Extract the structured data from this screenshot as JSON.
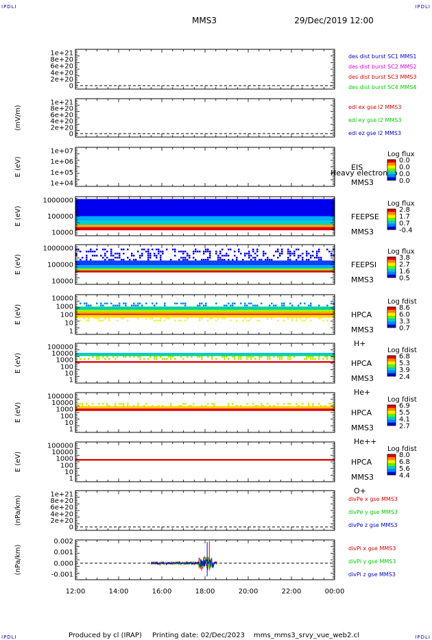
{
  "header": {
    "corner_tl": "IPDLI",
    "corner_tr": "IPDLI",
    "corner_bl": "IPDLI",
    "corner_br": "IPDLI",
    "spacecraft": "MMS3",
    "datetime": "29/Dec/2019 12:00"
  },
  "footer": {
    "produced": "Produced by cl (IRAP)",
    "printing": "Printing date: 02/Dec/2023",
    "file": "mms_mms3_srvy_vue_web2.cl"
  },
  "colors": {
    "red": "#dd0000",
    "green": "#00cc00",
    "blue": "#0000cc",
    "magenta": "#dd00dd"
  },
  "chart_data": [
    {
      "type": "line",
      "panel": "des_dist",
      "ylabel": "",
      "y_ticks": [
        "1e+21",
        "8e+20",
        "6e+20",
        "4e+20",
        "2e+20",
        "0"
      ],
      "series": [
        {
          "name": "des dist burst SC1 MMS1",
          "color": "#0000cc",
          "values": []
        },
        {
          "name": "des dist burst SC2 MMS2",
          "color": "#dd00dd",
          "values": []
        },
        {
          "name": "des dist burst SC3 MMS3",
          "color": "#dd0000",
          "values": []
        },
        {
          "name": "des dist burst SC4 MMS4",
          "color": "#00cc00",
          "values": []
        }
      ],
      "zero_line": true
    },
    {
      "type": "line",
      "panel": "edi",
      "ylabel": "(mV/m)",
      "y_ticks": [
        "1e+21",
        "8e+20",
        "6e+20",
        "4e+20",
        "2e+20",
        "0"
      ],
      "series": [
        {
          "name": "edi ex gse l2 MMS3",
          "color": "#dd0000",
          "values": []
        },
        {
          "name": "edi ey gse l2 MMS3",
          "color": "#00cc00",
          "values": []
        },
        {
          "name": "edi ez gse l2 MMS3",
          "color": "#0000cc",
          "values": []
        }
      ],
      "zero_line": true
    },
    {
      "type": "heatmap",
      "panel": "eis",
      "ylabel": "E (eV)",
      "y_ticks": [
        "1e+07",
        "1e+06",
        "1e+05",
        "1e+04"
      ],
      "instrument": [
        "EIS",
        "MMS3"
      ],
      "annotation": "Heavy electron to",
      "colorbar": {
        "title": "Log flux",
        "ticks": [
          "0.0",
          "0.0",
          "0.0",
          "0.0"
        ]
      },
      "bands": []
    },
    {
      "type": "heatmap",
      "panel": "feeps_e",
      "ylabel": "E (eV)",
      "y_ticks": [
        "1000000",
        "100000",
        "10000"
      ],
      "instrument": [
        "FEEPSE",
        "MMS3"
      ],
      "colorbar": {
        "title": "Log flux",
        "ticks": [
          "2.8",
          "1.7",
          "0.7",
          "-0.4"
        ]
      },
      "bands": [
        {
          "from": 0.06,
          "to": 0.5,
          "color": "#0000ee",
          "t0": 0.0,
          "t1": 1.0
        },
        {
          "from": 0.5,
          "to": 0.62,
          "color": "#00aaff",
          "t0": 0.0,
          "t1": 1.0
        },
        {
          "from": 0.62,
          "to": 0.72,
          "color": "#00d0c8",
          "t0": 0.0,
          "t1": 1.0
        },
        {
          "from": 0.72,
          "to": 0.78,
          "color": "#ffa800",
          "t0": 0.0,
          "t1": 1.0
        },
        {
          "from": 0.78,
          "to": 0.86,
          "color": "#dd0000",
          "t0": 0.0,
          "t1": 1.0
        }
      ]
    },
    {
      "type": "heatmap",
      "panel": "feeps_i",
      "ylabel": "E (eV)",
      "y_ticks": [
        "1000000",
        "100000",
        "10000"
      ],
      "instrument": [
        "FEEPSI",
        "MMS3"
      ],
      "colorbar": {
        "title": "Log flux",
        "ticks": [
          "3.8",
          "2.7",
          "1.6",
          "0.5"
        ]
      },
      "bands": [
        {
          "from": 0.1,
          "to": 0.38,
          "color": "#0000ee",
          "t0": 0.0,
          "t1": 1.0,
          "sparse": true
        },
        {
          "from": 0.4,
          "to": 0.52,
          "color": "#1040ff",
          "t0": 0.0,
          "t1": 1.0
        },
        {
          "from": 0.52,
          "to": 0.6,
          "color": "#00aaff",
          "t0": 0.0,
          "t1": 1.0
        },
        {
          "from": 0.6,
          "to": 0.65,
          "color": "#88ee00",
          "t0": 0.0,
          "t1": 1.0
        },
        {
          "from": 0.65,
          "to": 0.7,
          "color": "#dd0000",
          "t0": 0.0,
          "t1": 1.0
        }
      ]
    },
    {
      "type": "heatmap",
      "panel": "hpca_h",
      "ylabel": "E (eV)",
      "y_ticks": [
        "10000",
        "1000",
        "100",
        "10",
        "1"
      ],
      "instrument": [
        "HPCA",
        "MMS3",
        "H+"
      ],
      "colorbar": {
        "title": "Log fdist",
        "ticks": [
          "8.6",
          "6.0",
          "3.3",
          "0.7"
        ]
      },
      "bands": [
        {
          "from": 0.2,
          "to": 0.3,
          "color": "#0080ff",
          "t0": 0.0,
          "t1": 1.0,
          "sparse": true
        },
        {
          "from": 0.3,
          "to": 0.38,
          "color": "#00d0a0",
          "t0": 0.0,
          "t1": 1.0
        },
        {
          "from": 0.38,
          "to": 0.44,
          "color": "#aaee00",
          "t0": 0.0,
          "t1": 1.0
        },
        {
          "from": 0.44,
          "to": 0.48,
          "color": "#ffa000",
          "t0": 0.0,
          "t1": 1.0
        },
        {
          "from": 0.48,
          "to": 0.51,
          "color": "#dd0000",
          "t0": 0.0,
          "t1": 1.0
        },
        {
          "from": 0.51,
          "to": 0.58,
          "color": "#ffdd00",
          "t0": 0.0,
          "t1": 1.0
        },
        {
          "from": 0.58,
          "to": 0.66,
          "color": "#eeee60",
          "t0": 0.0,
          "t1": 1.0,
          "sparse": true
        }
      ]
    },
    {
      "type": "heatmap",
      "panel": "hpca_he",
      "ylabel": "E (eV)",
      "y_ticks": [
        "100000",
        "10000",
        "1000",
        "100",
        "10",
        "1"
      ],
      "instrument": [
        "HPCA",
        "MMS3",
        "He+"
      ],
      "colorbar": {
        "title": "Log fdist",
        "ticks": [
          "6.8",
          "5.3",
          "3.9",
          "2.4"
        ]
      },
      "bands": [
        {
          "from": 0.24,
          "to": 0.28,
          "color": "#00c0ff",
          "t0": 0.0,
          "t1": 1.0
        },
        {
          "from": 0.28,
          "to": 0.32,
          "color": "#00d070",
          "t0": 0.0,
          "t1": 1.0
        },
        {
          "from": 0.32,
          "to": 0.4,
          "color": "#aaee00",
          "t0": 0.0,
          "t1": 1.0,
          "sparse": true
        },
        {
          "from": 0.45,
          "to": 0.49,
          "color": "#dd0000",
          "t0": 0.0,
          "t1": 1.0
        }
      ]
    },
    {
      "type": "heatmap",
      "panel": "hpca_hepp",
      "ylabel": "E (eV)",
      "y_ticks": [
        "100000",
        "10000",
        "1000",
        "100",
        "10",
        "1"
      ],
      "instrument": [
        "HPCA",
        "MMS3",
        "He++"
      ],
      "colorbar": {
        "title": "Log fdist",
        "ticks": [
          "6.9",
          "5.5",
          "4.1",
          "2.7"
        ]
      },
      "bands": [
        {
          "from": 0.26,
          "to": 0.34,
          "color": "#ccee00",
          "t0": 0.0,
          "t1": 1.0,
          "sparse": true
        },
        {
          "from": 0.34,
          "to": 0.4,
          "color": "#ffcc00",
          "t0": 0.0,
          "t1": 1.0
        },
        {
          "from": 0.4,
          "to": 0.46,
          "color": "#dd0000",
          "t0": 0.0,
          "t1": 1.0
        }
      ]
    },
    {
      "type": "heatmap",
      "panel": "hpca_o",
      "ylabel": "E (eV)",
      "y_ticks": [
        "100000",
        "10000",
        "1000",
        "100",
        "10",
        "1"
      ],
      "instrument": [
        "HPCA",
        "MMS3",
        "O+"
      ],
      "colorbar": {
        "title": "Log fdist",
        "ticks": [
          "8.0",
          "6.8",
          "5.6",
          "4.4"
        ]
      },
      "bands": [
        {
          "from": 0.43,
          "to": 0.47,
          "color": "#dd0000",
          "t0": 0.0,
          "t1": 1.0
        }
      ]
    },
    {
      "type": "line",
      "panel": "divpe",
      "ylabel": "(nPa/km)",
      "y_ticks": [
        "1e+21",
        "8e+20",
        "6e+20",
        "4e+20",
        "2e+20",
        "0"
      ],
      "series": [
        {
          "name": "divPe x gse MMS3",
          "color": "#dd0000",
          "values": []
        },
        {
          "name": "divPe y gse MMS3",
          "color": "#00cc00",
          "values": []
        },
        {
          "name": "divPe z gse MMS3",
          "color": "#0000cc",
          "values": []
        }
      ],
      "zero_line": true
    },
    {
      "type": "line",
      "panel": "divpi",
      "ylabel": "(nPa/km)",
      "y_ticks": [
        "0.002",
        "0.001",
        "0.000",
        "-0.001"
      ],
      "ylim": [
        -0.0015,
        0.0021
      ],
      "series": [
        {
          "name": "divPi x gse MMS3",
          "color": "#dd0000"
        },
        {
          "name": "divPi y gse MMS3",
          "color": "#00cc00"
        },
        {
          "name": "divPi z gse MMS3",
          "color": "#0000cc"
        }
      ],
      "active_hours": [
        15.5,
        18.55
      ],
      "zero_line": true
    }
  ],
  "x_axis": {
    "ticks": [
      "12:00",
      "14:00",
      "16:00",
      "18:00",
      "20:00",
      "22:00",
      "00:00"
    ],
    "start_hour": 12,
    "end_hour": 24
  }
}
